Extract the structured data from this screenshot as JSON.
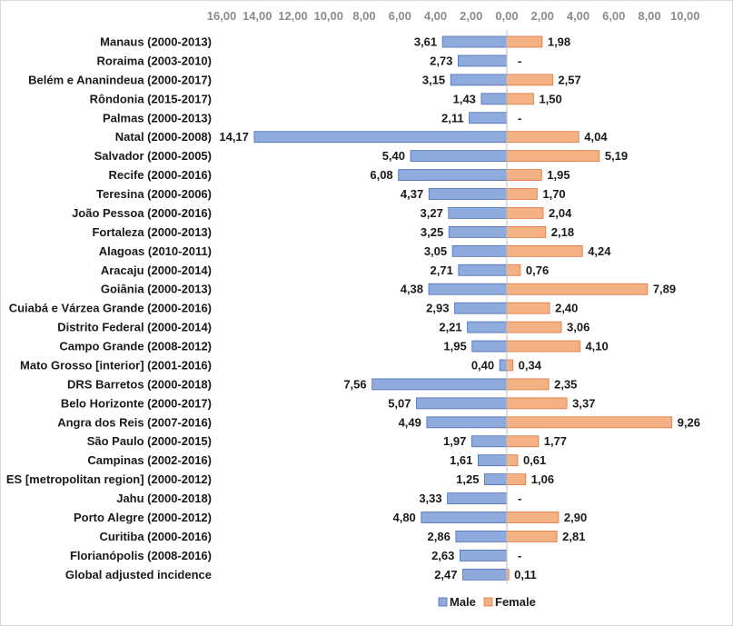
{
  "chart_data": {
    "type": "bar",
    "orientation": "horizontal-diverging",
    "title": "",
    "xlabel": "",
    "ylabel": "",
    "x_ticks": [
      "16,00",
      "14,00",
      "12,00",
      "10,00",
      "8,00",
      "6,00",
      "4,00",
      "2,00",
      "0,00",
      "2,00",
      "4,00",
      "6,00",
      "8,00",
      "10,00"
    ],
    "x_tick_values": [
      -16,
      -14,
      -12,
      -10,
      -8,
      -6,
      -4,
      -2,
      0,
      2,
      4,
      6,
      8,
      10
    ],
    "xlim": [
      -16,
      10
    ],
    "legend_position": "bottom",
    "categories": [
      "Manaus (2000-2013)",
      "Roraima (2003-2010)",
      "Belém e Ananindeua (2000-2017)",
      "Rôndonia (2015-2017)",
      "Palmas (2000-2013)",
      "Natal (2000-2008)",
      "Salvador (2000-2005)",
      "Recife (2000-2016)",
      "Teresina (2000-2006)",
      "João Pessoa (2000-2016)",
      "Fortaleza (2000-2013)",
      "Alagoas (2010-2011)",
      "Aracaju (2000-2014)",
      "Goiânia (2000-2013)",
      "Cuiabá e Várzea Grande (2000-2016)",
      "Distrito Federal (2000-2014)",
      "Campo Grande (2008-2012)",
      "Mato Grosso [interior] (2001-2016)",
      "DRS Barretos (2000-2018)",
      "Belo Horizonte (2000-2017)",
      "Angra dos Reis (2007-2016)",
      "São Paulo (2000-2015)",
      "Campinas (2002-2016)",
      "ES [metropolitan region] (2000-2012)",
      "Jahu (2000-2018)",
      "Porto Alegre (2000-2012)",
      "Curitiba (2000-2016)",
      "Florianópolis (2008-2016)",
      "Global adjusted incidence"
    ],
    "series": [
      {
        "name": "Male",
        "color": "#8faadc",
        "border": "#4a6fb5",
        "direction": "left",
        "values": [
          3.61,
          2.73,
          3.15,
          1.43,
          2.11,
          14.17,
          5.4,
          6.08,
          4.37,
          3.27,
          3.25,
          3.05,
          2.71,
          4.38,
          2.93,
          2.21,
          1.95,
          0.4,
          7.56,
          5.07,
          4.49,
          1.97,
          1.61,
          1.25,
          3.33,
          4.8,
          2.86,
          2.63,
          2.47
        ],
        "labels": [
          "3,61",
          "2,73",
          "3,15",
          "1,43",
          "2,11",
          "14,17",
          "5,40",
          "6,08",
          "4,37",
          "3,27",
          "3,25",
          "3,05",
          "2,71",
          "4,38",
          "2,93",
          "2,21",
          "1,95",
          "0,40",
          "7,56",
          "5,07",
          "4,49",
          "1,97",
          "1,61",
          "1,25",
          "3,33",
          "4,80",
          "2,86",
          "2,63",
          "2,47"
        ]
      },
      {
        "name": "Female",
        "color": "#f4b183",
        "border": "#e0763f",
        "direction": "right",
        "values": [
          1.98,
          null,
          2.57,
          1.5,
          null,
          4.04,
          5.19,
          1.95,
          1.7,
          2.04,
          2.18,
          4.24,
          0.76,
          7.89,
          2.4,
          3.06,
          4.1,
          0.34,
          2.35,
          3.37,
          9.26,
          1.77,
          0.61,
          1.06,
          null,
          2.9,
          2.81,
          null,
          0.11
        ],
        "labels": [
          "1,98",
          "-",
          "2,57",
          "1,50",
          "-",
          "4,04",
          "5,19",
          "1,95",
          "1,70",
          "2,04",
          "2,18",
          "4,24",
          "0,76",
          "7,89",
          "2,40",
          "3,06",
          "4,10",
          "0,34",
          "2,35",
          "3,37",
          "9,26",
          "1,77",
          "0,61",
          "1,06",
          "-",
          "2,90",
          "2,81",
          "-",
          "0,11"
        ]
      }
    ]
  }
}
